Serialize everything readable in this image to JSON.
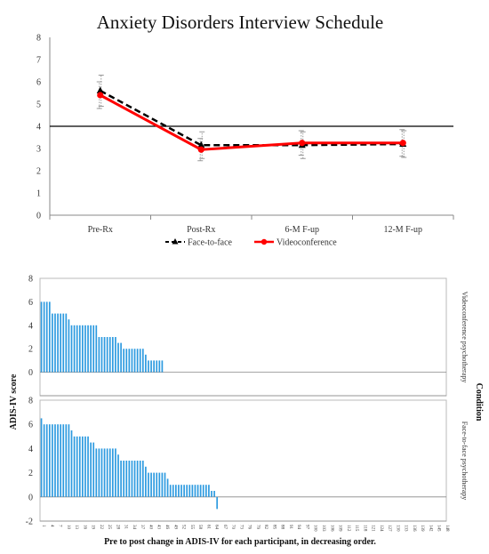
{
  "chart_data": [
    {
      "type": "line",
      "title": "Anxiety Disorders Interview Schedule",
      "categories": [
        "Pre-Rx",
        "Post-Rx",
        "6-M F-up",
        "12-M F-up"
      ],
      "ylim": [
        0,
        8
      ],
      "yticks": [
        0,
        1,
        2,
        3,
        4,
        5,
        6,
        7,
        8
      ],
      "reference_line": 4,
      "grid": false,
      "legend_position": "bottom",
      "series": [
        {
          "name": "Face-to-face",
          "values": [
            5.6,
            3.15,
            3.15,
            3.2
          ],
          "error": [
            0.7,
            0.6,
            0.6,
            0.6
          ],
          "color": "#000000",
          "dashed": true,
          "marker": "triangle"
        },
        {
          "name": "Videoconference",
          "values": [
            5.4,
            2.95,
            3.25,
            3.25
          ],
          "error": [
            0.6,
            0.5,
            0.55,
            0.6
          ],
          "color": "#ff0000",
          "dashed": false,
          "marker": "circle"
        }
      ]
    },
    {
      "type": "bar",
      "ylabel": "ADIS-IV score",
      "xlabel": "Pre to post change in ADIS-IV for each participant, in decreasing order.",
      "facet_title": "Condition",
      "bar_color": "#2e9be0",
      "x_tick_labels": [
        "1",
        "4",
        "7",
        "10",
        "13",
        "16",
        "19",
        "22",
        "25",
        "28",
        "31",
        "34",
        "37",
        "40",
        "43",
        "46",
        "49",
        "52",
        "55",
        "58",
        "61",
        "64",
        "67",
        "70",
        "73",
        "76",
        "79",
        "82",
        "85",
        "88",
        "91",
        "94",
        "97",
        "100",
        "103",
        "106",
        "109",
        "112",
        "115",
        "118",
        "121",
        "124",
        "127",
        "130",
        "133",
        "136",
        "139",
        "142",
        "145",
        "148"
      ],
      "panels": [
        {
          "name": "Videoconference psychotherapy",
          "ylim": [
            -2,
            8
          ],
          "yticks": [
            0,
            2,
            4,
            6,
            8
          ],
          "values": [
            6,
            6,
            6,
            6,
            5,
            5,
            5,
            5,
            5,
            5,
            4.5,
            4,
            4,
            4,
            4,
            4,
            4,
            4,
            4,
            4,
            4,
            3,
            3,
            3,
            3,
            3,
            3,
            3,
            2.5,
            2.5,
            2,
            2,
            2,
            2,
            2,
            2,
            2,
            2,
            1.5,
            1,
            1,
            1,
            1,
            1,
            1
          ]
        },
        {
          "name": "Face-to-face psychotherapy",
          "ylim": [
            -2,
            8
          ],
          "yticks": [
            -2,
            0,
            2,
            4,
            6,
            8
          ],
          "values": [
            6.5,
            6,
            6,
            6,
            6,
            6,
            6,
            6,
            6,
            6,
            6,
            5.5,
            5,
            5,
            5,
            5,
            5,
            5,
            4.5,
            4.5,
            4,
            4,
            4,
            4,
            4,
            4,
            4,
            4,
            3.5,
            3,
            3,
            3,
            3,
            3,
            3,
            3,
            3,
            3,
            2.5,
            2,
            2,
            2,
            2,
            2,
            2,
            2,
            1.5,
            1,
            1,
            1,
            1,
            1,
            1,
            1,
            1,
            1,
            1,
            1,
            1,
            1,
            1,
            1,
            0.5,
            0.5,
            -1
          ]
        }
      ]
    }
  ]
}
